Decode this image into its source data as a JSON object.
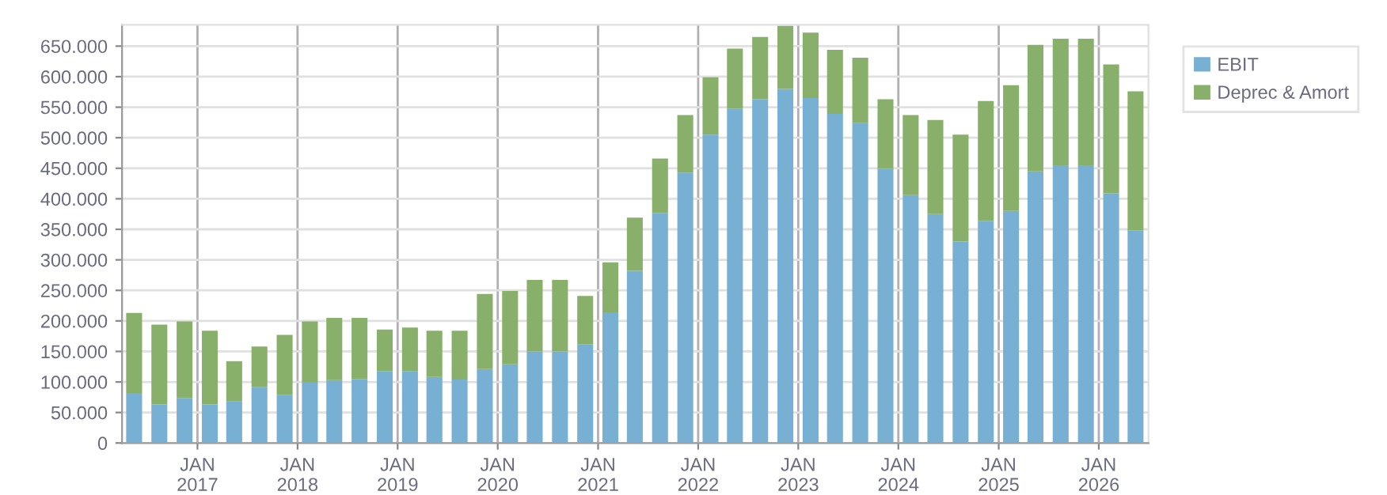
{
  "chart_data": {
    "type": "bar",
    "stacked": true,
    "x": [
      "2016-05-15",
      "2016-08-15",
      "2016-11-15",
      "2017-02-15",
      "2017-05-15",
      "2017-08-15",
      "2017-11-15",
      "2018-02-15",
      "2018-05-15",
      "2018-08-15",
      "2018-11-15",
      "2019-02-15",
      "2019-05-15",
      "2019-08-15",
      "2019-11-15",
      "2020-02-15",
      "2020-05-15",
      "2020-08-15",
      "2020-11-15",
      "2021-02-15",
      "2021-05-15",
      "2021-08-15",
      "2021-11-15",
      "2022-02-15",
      "2022-05-15",
      "2022-08-15",
      "2022-11-15",
      "2023-02-15",
      "2023-05-15",
      "2023-08-15",
      "2023-11-15",
      "2024-02-15",
      "2024-05-15",
      "2024-08-15",
      "2024-11-15",
      "2025-02-15",
      "2025-05-15",
      "2025-08-15",
      "2025-11-15",
      "2026-02-15",
      "2026-05-15"
    ],
    "series": [
      {
        "name": "EBIT",
        "color": "#77b0d3",
        "values": [
          82000,
          63000,
          74000,
          63000,
          68000,
          92000,
          79000,
          100000,
          103000,
          105000,
          118000,
          118000,
          108000,
          104000,
          121000,
          129000,
          150000,
          150000,
          162000,
          214000,
          282000,
          377000,
          443000,
          505000,
          547000,
          563000,
          580000,
          565000,
          539000,
          524000,
          449000,
          406000,
          375000,
          330000,
          364000,
          380000,
          445000,
          455000,
          455000,
          409000,
          348000
        ]
      },
      {
        "name": "Deprec & Amort",
        "color": "#89b06a",
        "values": [
          131000,
          131000,
          125000,
          121000,
          66000,
          66000,
          98000,
          99000,
          102000,
          100000,
          68000,
          71000,
          76000,
          80000,
          123000,
          120000,
          117000,
          117000,
          79000,
          82000,
          87000,
          89000,
          94000,
          94000,
          99000,
          102000,
          103000,
          107000,
          105000,
          107000,
          114000,
          131000,
          154000,
          175000,
          196000,
          206000,
          207000,
          207000,
          207000,
          211000,
          228000
        ]
      }
    ],
    "xlim": [
      "2016-04-01",
      "2026-07-01"
    ],
    "xticks": [
      {
        "value": "2017-01-01",
        "label": "JAN\n2017"
      },
      {
        "value": "2018-01-01",
        "label": "JAN\n2018"
      },
      {
        "value": "2019-01-01",
        "label": "JAN\n2019"
      },
      {
        "value": "2020-01-01",
        "label": "JAN\n2020"
      },
      {
        "value": "2021-01-01",
        "label": "JAN\n2021"
      },
      {
        "value": "2022-01-01",
        "label": "JAN\n2022"
      },
      {
        "value": "2023-01-01",
        "label": "JAN\n2023"
      },
      {
        "value": "2024-01-01",
        "label": "JAN\n2024"
      },
      {
        "value": "2025-01-01",
        "label": "JAN\n2025"
      },
      {
        "value": "2026-01-01",
        "label": "JAN\n2026"
      }
    ],
    "ylim": [
      0,
      685000
    ],
    "yticks": [
      {
        "value": 0,
        "label": "0"
      },
      {
        "value": 50000,
        "label": "50.000"
      },
      {
        "value": 100000,
        "label": "100.000"
      },
      {
        "value": 150000,
        "label": "150.000"
      },
      {
        "value": 200000,
        "label": "200.000"
      },
      {
        "value": 250000,
        "label": "250.000"
      },
      {
        "value": 300000,
        "label": "300.000"
      },
      {
        "value": 350000,
        "label": "350.000"
      },
      {
        "value": 400000,
        "label": "400.000"
      },
      {
        "value": 450000,
        "label": "450.000"
      },
      {
        "value": 500000,
        "label": "500.000"
      },
      {
        "value": 550000,
        "label": "550.000"
      },
      {
        "value": 600000,
        "label": "600.000"
      },
      {
        "value": 650000,
        "label": "650.000"
      }
    ],
    "grid": true,
    "legend": "top right"
  }
}
